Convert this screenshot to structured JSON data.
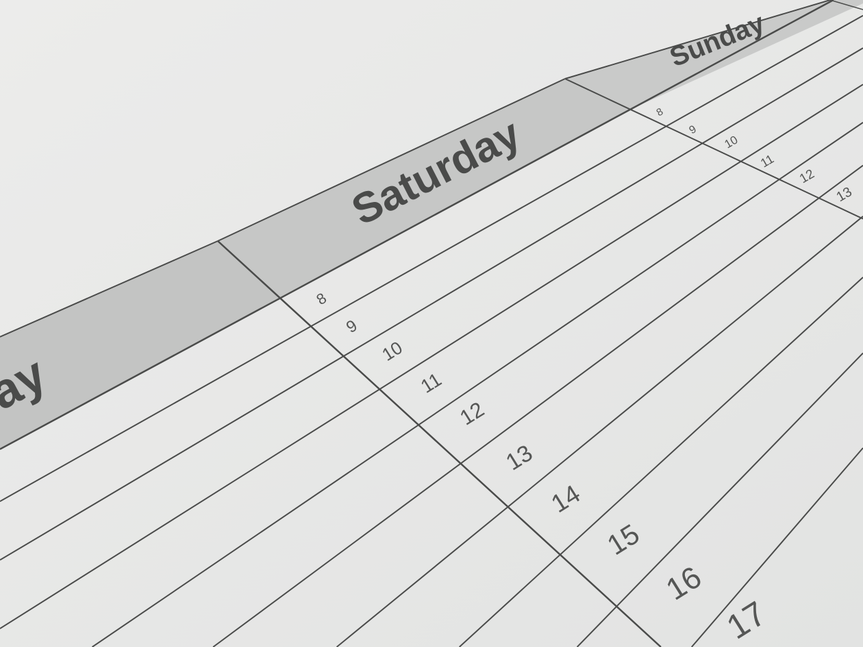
{
  "calendar": {
    "days": [
      {
        "label": "ay"
      },
      {
        "label": "Saturday"
      },
      {
        "label": "Sunday"
      }
    ],
    "saturday_hours": [
      "8",
      "9",
      "10",
      "11",
      "12",
      "13",
      "14",
      "15",
      "16",
      "17"
    ],
    "sunday_hours": [
      "8",
      "9",
      "10",
      "11",
      "12",
      "13"
    ]
  },
  "colors": {
    "paper": "#e6e7e6",
    "header_band": "#c3c4c3",
    "grid_line": "#4a4b4a",
    "text": "#4a4b4a"
  }
}
